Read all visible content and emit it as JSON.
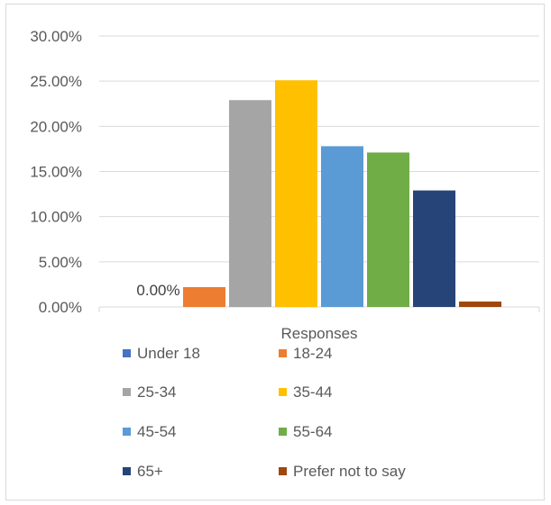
{
  "chart_data": {
    "type": "bar",
    "title": "",
    "xlabel": "Responses",
    "ylabel": "",
    "ylim": [
      0,
      0.3
    ],
    "yticks": [
      0,
      0.05,
      0.1,
      0.15,
      0.2,
      0.25,
      0.3
    ],
    "ytick_labels": [
      "0.00%",
      "5.00%",
      "10.00%",
      "15.00%",
      "20.00%",
      "25.00%",
      "30.00%"
    ],
    "grid": true,
    "legend_position": "bottom",
    "categories": [
      "Responses"
    ],
    "series": [
      {
        "name": "Under 18",
        "values": [
          0.0
        ],
        "color": "#4472C4",
        "data_label": "0.00%"
      },
      {
        "name": "18-24",
        "values": [
          0.022
        ],
        "color": "#ED7D31"
      },
      {
        "name": "25-34",
        "values": [
          0.229
        ],
        "color": "#A5A5A5"
      },
      {
        "name": "35-44",
        "values": [
          0.251
        ],
        "color": "#FFC000"
      },
      {
        "name": "45-54",
        "values": [
          0.178
        ],
        "color": "#5B9BD5"
      },
      {
        "name": "55-64",
        "values": [
          0.171
        ],
        "color": "#70AD47"
      },
      {
        "name": "65+",
        "values": [
          0.129
        ],
        "color": "#264478"
      },
      {
        "name": "Prefer not to say",
        "values": [
          0.006
        ],
        "color": "#9E480E"
      }
    ]
  }
}
